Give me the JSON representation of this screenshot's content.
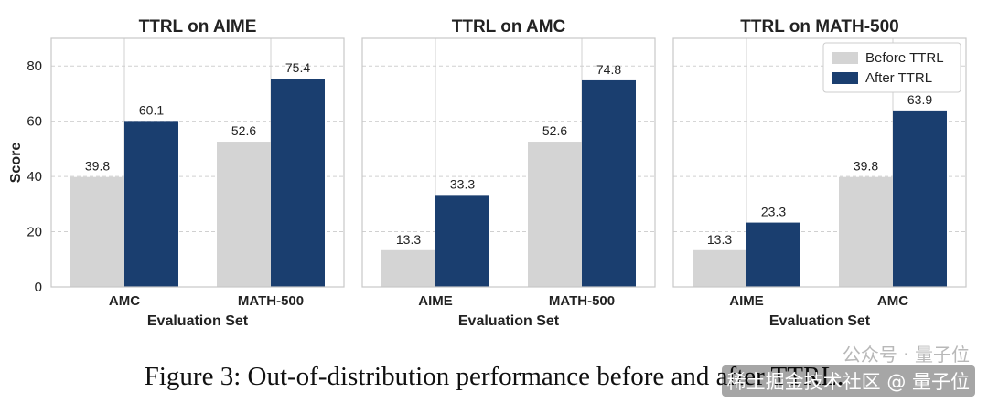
{
  "colors": {
    "before": "#d4d4d4",
    "after": "#1a3e6f",
    "grid": "#d0d0d0",
    "frame": "#c8c8c8",
    "text": "#222222"
  },
  "legend": {
    "before": "Before TTRL",
    "after": "After TTRL",
    "placement": "top-right"
  },
  "ylabel": "Score",
  "caption": "Figure 3: Out-of-distribution performance before and after TTRL.",
  "watermark": "稀土掘金技术社区 @ 量子位",
  "watermark_top": "公众号 · 量子位",
  "chart_data": [
    {
      "type": "bar",
      "title": "TTRL on AIME",
      "xlabel": "Evaluation Set",
      "ylabel": "Score",
      "ylim": [
        0,
        90
      ],
      "yticks": [
        0,
        20,
        40,
        60,
        80
      ],
      "categories": [
        "AMC",
        "MATH-500"
      ],
      "series": [
        {
          "name": "Before TTRL",
          "values": [
            39.8,
            52.6
          ]
        },
        {
          "name": "After TTRL",
          "values": [
            60.1,
            75.4
          ]
        }
      ],
      "labels": [
        [
          "39.8",
          "52.6"
        ],
        [
          "60.1",
          "75.4"
        ]
      ],
      "grid": true
    },
    {
      "type": "bar",
      "title": "TTRL on AMC",
      "xlabel": "Evaluation Set",
      "ylim": [
        0,
        90
      ],
      "categories": [
        "AIME",
        "MATH-500"
      ],
      "series": [
        {
          "name": "Before TTRL",
          "values": [
            13.3,
            52.6
          ]
        },
        {
          "name": "After TTRL",
          "values": [
            33.3,
            74.8
          ]
        }
      ],
      "labels": [
        [
          "13.3",
          "52.6"
        ],
        [
          "33.3",
          "74.8"
        ]
      ],
      "grid": true
    },
    {
      "type": "bar",
      "title": "TTRL on MATH-500",
      "xlabel": "Evaluation Set",
      "ylim": [
        0,
        90
      ],
      "categories": [
        "AIME",
        "AMC"
      ],
      "series": [
        {
          "name": "Before TTRL",
          "values": [
            13.3,
            39.8
          ]
        },
        {
          "name": "After TTRL",
          "values": [
            23.3,
            63.9
          ]
        }
      ],
      "labels": [
        [
          "13.3",
          "39.8"
        ],
        [
          "23.3",
          "63.9"
        ]
      ],
      "grid": true,
      "legend": true
    }
  ]
}
